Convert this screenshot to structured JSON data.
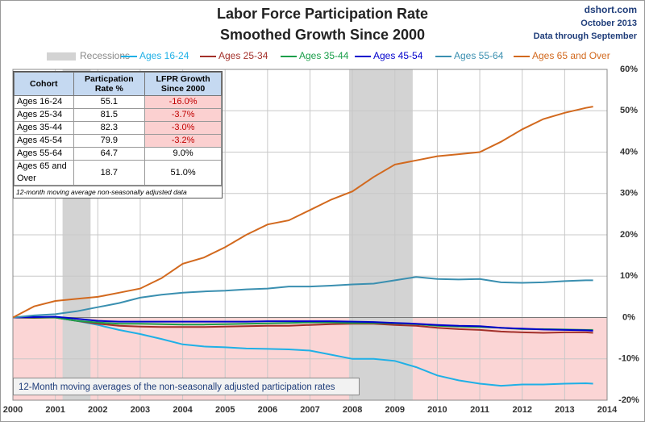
{
  "chart_data": {
    "type": "line",
    "title": "Labor Force Participation Rate",
    "subtitle": "Smoothed Growth Since 2000",
    "source": [
      "dshort.com",
      "October 2013",
      "Data through September"
    ],
    "note": "12-Month moving  averages of the non-seasonally adjusted participation rates",
    "recessions_label": "Recessions",
    "recessions_color": "#d3d3d3",
    "recessions": [
      [
        2001.17,
        2001.83
      ],
      [
        2007.92,
        2009.42
      ]
    ],
    "x": [
      2000,
      2000.5,
      2001,
      2001.5,
      2002,
      2002.5,
      2003,
      2003.5,
      2004,
      2004.5,
      2005,
      2005.5,
      2006,
      2006.5,
      2007,
      2007.5,
      2008,
      2008.5,
      2009,
      2009.5,
      2010,
      2010.5,
      2011,
      2011.5,
      2012,
      2012.5,
      2013,
      2013.5,
      2013.67
    ],
    "series": [
      {
        "name": "Ages 16-24",
        "color": "#1fb0e6",
        "values": [
          0,
          0.2,
          0,
          -0.8,
          -1.8,
          -3,
          -4,
          -5.2,
          -6.5,
          -7,
          -7.2,
          -7.5,
          -7.6,
          -7.7,
          -8,
          -9,
          -10,
          -10,
          -10.5,
          -12,
          -14,
          -15.2,
          -16,
          -16.5,
          -16.2,
          -16.2,
          -16,
          -15.9,
          -16.0
        ]
      },
      {
        "name": "Ages 25-34",
        "color": "#a3302a",
        "values": [
          0,
          -0.1,
          0,
          -0.8,
          -1.5,
          -2,
          -2.2,
          -2.3,
          -2.3,
          -2.3,
          -2.2,
          -2.1,
          -2,
          -2,
          -1.8,
          -1.6,
          -1.5,
          -1.5,
          -1.8,
          -2,
          -2.5,
          -2.8,
          -3,
          -3.4,
          -3.6,
          -3.7,
          -3.6,
          -3.6,
          -3.7
        ]
      },
      {
        "name": "Ages 35-44",
        "color": "#1a9e4a",
        "values": [
          0,
          0,
          0,
          -0.8,
          -1.2,
          -1.5,
          -1.5,
          -1.6,
          -1.7,
          -1.7,
          -1.6,
          -1.5,
          -1.4,
          -1.3,
          -1.2,
          -1.2,
          -1.3,
          -1.3,
          -1.4,
          -1.6,
          -2,
          -2.2,
          -2.3,
          -2.5,
          -2.8,
          -2.8,
          -2.9,
          -3,
          -3.0
        ]
      },
      {
        "name": "Ages 45-54",
        "color": "#0000cc",
        "values": [
          0,
          0.1,
          0.2,
          -0.3,
          -0.8,
          -1,
          -1,
          -1,
          -1,
          -1,
          -1,
          -1,
          -0.9,
          -0.9,
          -0.9,
          -0.9,
          -1,
          -1.1,
          -1.3,
          -1.5,
          -1.8,
          -2,
          -2.1,
          -2.5,
          -2.7,
          -2.9,
          -3.0,
          -3.1,
          -3.2
        ]
      },
      {
        "name": "Ages 55-64",
        "color": "#3a8fb0",
        "values": [
          0,
          0.5,
          0.8,
          1.5,
          2.5,
          3.5,
          4.8,
          5.5,
          6,
          6.3,
          6.5,
          6.8,
          7,
          7.5,
          7.5,
          7.7,
          8,
          8.2,
          9,
          9.8,
          9.3,
          9.2,
          9.3,
          8.5,
          8.4,
          8.5,
          8.8,
          9,
          9.0
        ]
      },
      {
        "name": "Ages 65 and Over",
        "color": "#d2691e",
        "values": [
          0,
          2.7,
          4,
          4.5,
          5,
          6,
          7,
          9.5,
          13,
          14.5,
          17,
          20,
          22.5,
          23.5,
          26,
          28.5,
          30.5,
          34,
          37,
          38,
          39,
          39.5,
          40,
          42.5,
          45.5,
          48,
          49.5,
          50.7,
          51
        ]
      }
    ],
    "xlim": [
      2000,
      2014
    ],
    "xticks": [
      2000,
      2001,
      2002,
      2003,
      2004,
      2005,
      2006,
      2007,
      2008,
      2009,
      2010,
      2011,
      2012,
      2013,
      2014
    ],
    "ylim": [
      -20,
      60
    ],
    "yticks": [
      {
        "value": -20,
        "label": "-20%"
      },
      {
        "value": -10,
        "label": "-10%"
      },
      {
        "value": 0,
        "label": "0%"
      },
      {
        "value": 10,
        "label": "10%"
      },
      {
        "value": 20,
        "label": "20%"
      },
      {
        "value": 30,
        "label": "30%"
      },
      {
        "value": 40,
        "label": "40%"
      },
      {
        "value": 50,
        "label": "50%"
      },
      {
        "value": 60,
        "label": "60%"
      }
    ],
    "grid": true,
    "negative_fill": "#fbd5d5",
    "table": {
      "header": [
        "Cohort",
        "Particpation Rate %",
        "LFPR Growth Since 2000"
      ],
      "rows": [
        [
          "Ages 16-24",
          "55.1",
          "-16.0%"
        ],
        [
          "Ages 25-34",
          "81.5",
          "-3.7%"
        ],
        [
          "Ages 35-44",
          "82.3",
          "-3.0%"
        ],
        [
          "Ages 45-54",
          "79.9",
          "-3.2%"
        ],
        [
          "Ages 55-64",
          "64.7",
          "9.0%"
        ],
        [
          "Ages 65 and Over",
          "18.7",
          "51.0%"
        ]
      ],
      "footnote": "12-month moving average non-seasonally adjusted data"
    }
  }
}
